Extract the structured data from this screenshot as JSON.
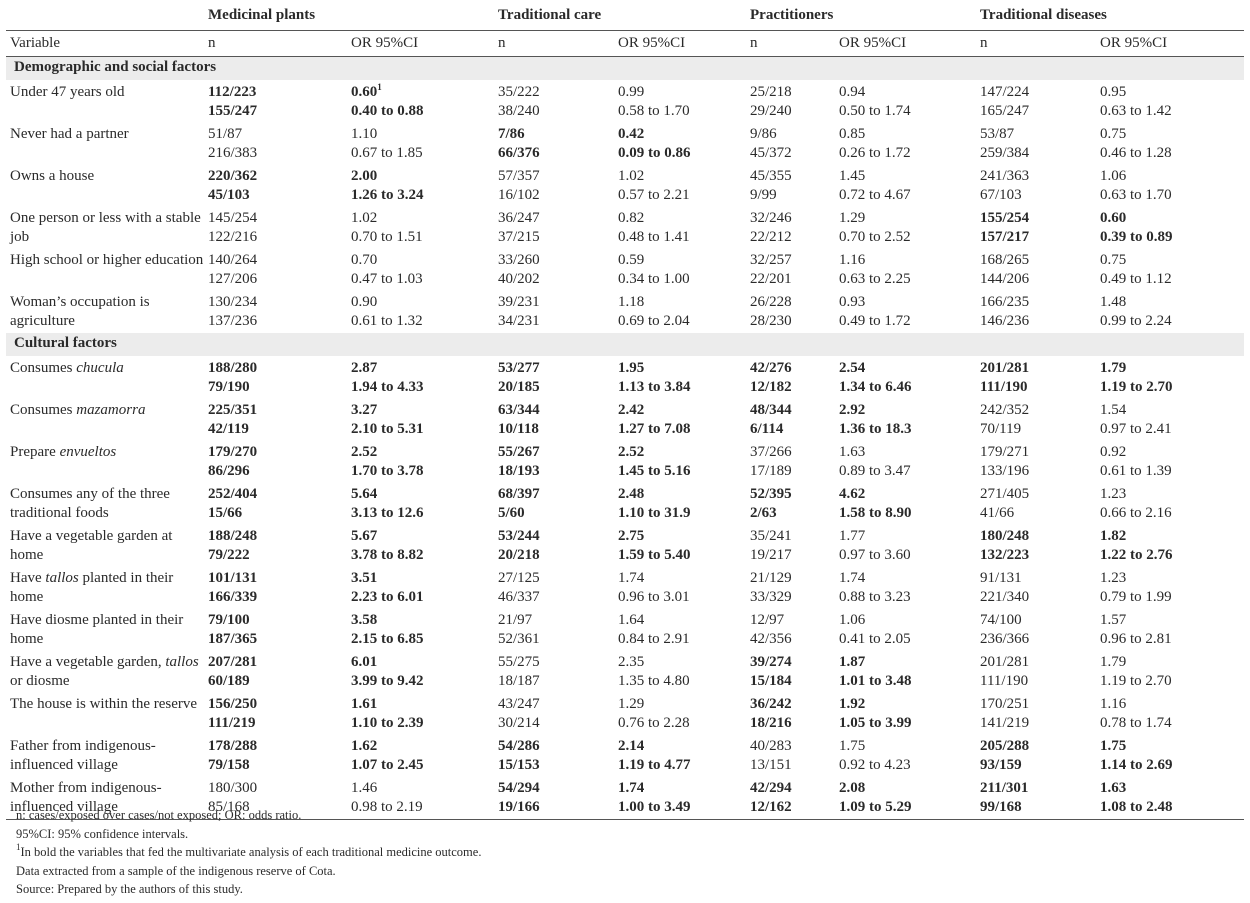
{
  "groups": [
    "Medicinal plants",
    "Traditional care",
    "Practitioners",
    "Traditional diseases"
  ],
  "col_headers": [
    "Variable",
    "n",
    "OR 95%CI",
    "n",
    "OR 95%CI",
    "n",
    "OR 95%CI",
    "n",
    "OR 95%CI"
  ],
  "sections": [
    {
      "title": "Demographic and social factors",
      "rows": [
        {
          "label": "Under 47 years old",
          "cells": [
            {
              "n": [
                "112/223",
                "155/247"
              ],
              "or": [
                "0.60",
                "0.40 to 0.88"
              ],
              "bold": true,
              "sup": "1"
            },
            {
              "n": [
                "35/222",
                "38/240"
              ],
              "or": [
                "0.99",
                "0.58 to 1.70"
              ],
              "bold": false
            },
            {
              "n": [
                "25/218",
                "29/240"
              ],
              "or": [
                "0.94",
                "0.50 to 1.74"
              ],
              "bold": false
            },
            {
              "n": [
                "147/224",
                "165/247"
              ],
              "or": [
                "0.95",
                "0.63 to 1.42"
              ],
              "bold": false
            }
          ]
        },
        {
          "label": "Never had a partner",
          "cells": [
            {
              "n": [
                "51/87",
                "216/383"
              ],
              "or": [
                "1.10",
                "0.67 to 1.85"
              ],
              "bold": false
            },
            {
              "n": [
                "7/86",
                "66/376"
              ],
              "or": [
                "0.42",
                "0.09 to 0.86"
              ],
              "bold": true
            },
            {
              "n": [
                "9/86",
                "45/372"
              ],
              "or": [
                "0.85",
                "0.26 to 1.72"
              ],
              "bold": false
            },
            {
              "n": [
                "53/87",
                "259/384"
              ],
              "or": [
                "0.75",
                "0.46 to 1.28"
              ],
              "bold": false
            }
          ]
        },
        {
          "label": "Owns a house",
          "cells": [
            {
              "n": [
                "220/362",
                "45/103"
              ],
              "or": [
                "2.00",
                "1.26 to 3.24"
              ],
              "bold": true
            },
            {
              "n": [
                "57/357",
                "16/102"
              ],
              "or": [
                "1.02",
                "0.57 to 2.21"
              ],
              "bold": false
            },
            {
              "n": [
                "45/355",
                "9/99"
              ],
              "or": [
                "1.45",
                "0.72 to 4.67"
              ],
              "bold": false
            },
            {
              "n": [
                "241/363",
                "67/103"
              ],
              "or": [
                "1.06",
                "0.63 to 1.70"
              ],
              "bold": false
            }
          ]
        },
        {
          "label": "One person or less with a stable job",
          "cells": [
            {
              "n": [
                "145/254",
                "122/216"
              ],
              "or": [
                "1.02",
                "0.70 to 1.51"
              ],
              "bold": false
            },
            {
              "n": [
                "36/247",
                "37/215"
              ],
              "or": [
                "0.82",
                "0.48 to 1.41"
              ],
              "bold": false
            },
            {
              "n": [
                "32/246",
                "22/212"
              ],
              "or": [
                "1.29",
                "0.70 to 2.52"
              ],
              "bold": false
            },
            {
              "n": [
                "155/254",
                "157/217"
              ],
              "or": [
                "0.60",
                "0.39 to 0.89"
              ],
              "bold": true
            }
          ]
        },
        {
          "label": "High school or higher education",
          "cells": [
            {
              "n": [
                "140/264",
                "127/206"
              ],
              "or": [
                "0.70",
                "0.47 to 1.03"
              ],
              "bold": false
            },
            {
              "n": [
                "33/260",
                "40/202"
              ],
              "or": [
                "0.59",
                "0.34 to 1.00"
              ],
              "bold": false
            },
            {
              "n": [
                "32/257",
                "22/201"
              ],
              "or": [
                "1.16",
                "0.63 to 2.25"
              ],
              "bold": false
            },
            {
              "n": [
                "168/265",
                "144/206"
              ],
              "or": [
                "0.75",
                "0.49 to 1.12"
              ],
              "bold": false
            }
          ]
        },
        {
          "label": "Woman’s occupation is agriculture",
          "cells": [
            {
              "n": [
                "130/234",
                "137/236"
              ],
              "or": [
                "0.90",
                "0.61 to 1.32"
              ],
              "bold": false
            },
            {
              "n": [
                "39/231",
                "34/231"
              ],
              "or": [
                "1.18",
                "0.69 to 2.04"
              ],
              "bold": false
            },
            {
              "n": [
                "26/228",
                "28/230"
              ],
              "or": [
                "0.93",
                "0.49 to 1.72"
              ],
              "bold": false
            },
            {
              "n": [
                "166/235",
                "146/236"
              ],
              "or": [
                "1.48",
                "0.99 to 2.24"
              ],
              "bold": false
            }
          ]
        }
      ]
    },
    {
      "title": "Cultural factors",
      "rows": [
        {
          "label": "Consumes chucula",
          "cells": [
            {
              "n": [
                "188/280",
                "79/190"
              ],
              "or": [
                "2.87",
                "1.94 to 4.33"
              ],
              "bold": true
            },
            {
              "n": [
                "53/277",
                "20/185"
              ],
              "or": [
                "1.95",
                "1.13 to 3.84"
              ],
              "bold": true
            },
            {
              "n": [
                "42/276",
                "12/182"
              ],
              "or": [
                "2.54",
                "1.34 to 6.46"
              ],
              "bold": true
            },
            {
              "n": [
                "201/281",
                "111/190"
              ],
              "or": [
                "1.79",
                "1.19 to 2.70"
              ],
              "bold": true
            }
          ]
        },
        {
          "label": "Consumes mazamorra",
          "cells": [
            {
              "n": [
                "225/351",
                "42/119"
              ],
              "or": [
                "3.27",
                "2.10 to 5.31"
              ],
              "bold": true
            },
            {
              "n": [
                "63/344",
                "10/118"
              ],
              "or": [
                "2.42",
                "1.27 to 7.08"
              ],
              "bold": true
            },
            {
              "n": [
                "48/344",
                "6/114"
              ],
              "or": [
                "2.92",
                "1.36 to 18.3"
              ],
              "bold": true
            },
            {
              "n": [
                "242/352",
                "70/119"
              ],
              "or": [
                "1.54",
                "0.97 to 2.41"
              ],
              "bold": false
            }
          ]
        },
        {
          "label": "Prepare envueltos",
          "cells": [
            {
              "n": [
                "179/270",
                "86/296"
              ],
              "or": [
                "2.52",
                "1.70 to 3.78"
              ],
              "bold": true
            },
            {
              "n": [
                "55/267",
                "18/193"
              ],
              "or": [
                "2.52",
                "1.45 to 5.16"
              ],
              "bold": true
            },
            {
              "n": [
                "37/266",
                "17/189"
              ],
              "or": [
                "1.63",
                "0.89 to 3.47"
              ],
              "bold": false
            },
            {
              "n": [
                "179/271",
                "133/196"
              ],
              "or": [
                "0.92",
                "0.61 to 1.39"
              ],
              "bold": false
            }
          ]
        },
        {
          "label": "Consumes any of the three traditional foods",
          "cells": [
            {
              "n": [
                "252/404",
                "15/66"
              ],
              "or": [
                "5.64",
                "3.13 to 12.6"
              ],
              "bold": true
            },
            {
              "n": [
                "68/397",
                "5/60"
              ],
              "or": [
                "2.48",
                "1.10 to 31.9"
              ],
              "bold": true
            },
            {
              "n": [
                "52/395",
                "2/63"
              ],
              "or": [
                "4.62",
                "1.58 to 8.90"
              ],
              "bold": true
            },
            {
              "n": [
                "271/405",
                "41/66"
              ],
              "or": [
                "1.23",
                "0.66 to 2.16"
              ],
              "bold": false
            }
          ]
        },
        {
          "label": "Have a vegetable garden at home",
          "cells": [
            {
              "n": [
                "188/248",
                "79/222"
              ],
              "or": [
                "5.67",
                "3.78 to 8.82"
              ],
              "bold": true
            },
            {
              "n": [
                "53/244",
                "20/218"
              ],
              "or": [
                "2.75",
                "1.59 to 5.40"
              ],
              "bold": true
            },
            {
              "n": [
                "35/241",
                "19/217"
              ],
              "or": [
                "1.77",
                "0.97 to 3.60"
              ],
              "bold": false
            },
            {
              "n": [
                "180/248",
                "132/223"
              ],
              "or": [
                "1.82",
                "1.22 to 2.76"
              ],
              "bold": true
            }
          ]
        },
        {
          "label": "Have tallos planted in their home",
          "cells": [
            {
              "n": [
                "101/131",
                "166/339"
              ],
              "or": [
                "3.51",
                "2.23 to 6.01"
              ],
              "bold": true
            },
            {
              "n": [
                "27/125",
                "46/337"
              ],
              "or": [
                "1.74",
                "0.96 to 3.01"
              ],
              "bold": false
            },
            {
              "n": [
                "21/129",
                "33/329"
              ],
              "or": [
                "1.74",
                "0.88 to 3.23"
              ],
              "bold": false
            },
            {
              "n": [
                "91/131",
                "221/340"
              ],
              "or": [
                "1.23",
                "0.79 to 1.99"
              ],
              "bold": false
            }
          ]
        },
        {
          "label": "Have diosme planted in their home",
          "cells": [
            {
              "n": [
                "79/100",
                "187/365"
              ],
              "or": [
                "3.58",
                "2.15 to 6.85"
              ],
              "bold": true
            },
            {
              "n": [
                "21/97",
                "52/361"
              ],
              "or": [
                "1.64",
                "0.84 to 2.91"
              ],
              "bold": false
            },
            {
              "n": [
                "12/97",
                "42/356"
              ],
              "or": [
                "1.06",
                "0.41 to 2.05"
              ],
              "bold": false
            },
            {
              "n": [
                "74/100",
                "236/366"
              ],
              "or": [
                "1.57",
                "0.96 to 2.81"
              ],
              "bold": false
            }
          ]
        },
        {
          "label": "Have a vegetable garden, tallos or diosme",
          "cells": [
            {
              "n": [
                "207/281",
                "60/189"
              ],
              "or": [
                "6.01",
                "3.99 to 9.42"
              ],
              "bold": true
            },
            {
              "n": [
                "55/275",
                "18/187"
              ],
              "or": [
                "2.35",
                "1.35 to 4.80"
              ],
              "bold": false
            },
            {
              "n": [
                "39/274",
                "15/184"
              ],
              "or": [
                "1.87",
                "1.01 to 3.48"
              ],
              "bold": true
            },
            {
              "n": [
                "201/281",
                "111/190"
              ],
              "or": [
                "1.79",
                "1.19 to 2.70"
              ],
              "bold": false
            }
          ]
        },
        {
          "label": "The house is within the reserve",
          "cells": [
            {
              "n": [
                "156/250",
                "111/219"
              ],
              "or": [
                "1.61",
                "1.10 to 2.39"
              ],
              "bold": true
            },
            {
              "n": [
                "43/247",
                "30/214"
              ],
              "or": [
                "1.29",
                "0.76 to 2.28"
              ],
              "bold": false
            },
            {
              "n": [
                "36/242",
                "18/216"
              ],
              "or": [
                "1.92",
                "1.05 to 3.99"
              ],
              "bold": true
            },
            {
              "n": [
                "170/251",
                "141/219"
              ],
              "or": [
                "1.16",
                "0.78 to 1.74"
              ],
              "bold": false
            }
          ]
        },
        {
          "label": "Father from indigenous-influenced village",
          "cells": [
            {
              "n": [
                "178/288",
                "79/158"
              ],
              "or": [
                "1.62",
                "1.07 to 2.45"
              ],
              "bold": true
            },
            {
              "n": [
                "54/286",
                "15/153"
              ],
              "or": [
                "2.14",
                "1.19 to 4.77"
              ],
              "bold": true
            },
            {
              "n": [
                "40/283",
                "13/151"
              ],
              "or": [
                "1.75",
                "0.92 to 4.23"
              ],
              "bold": false
            },
            {
              "n": [
                "205/288",
                "93/159"
              ],
              "or": [
                "1.75",
                "1.14 to 2.69"
              ],
              "bold": true
            }
          ]
        },
        {
          "label": "Mother from indigenous-influenced village",
          "cells": [
            {
              "n": [
                "180/300",
                "85/168"
              ],
              "or": [
                "1.46",
                "0.98 to 2.19"
              ],
              "bold": false
            },
            {
              "n": [
                "54/294",
                "19/166"
              ],
              "or": [
                "1.74",
                "1.00 to 3.49"
              ],
              "bold": true
            },
            {
              "n": [
                "42/294",
                "12/162"
              ],
              "or": [
                "2.08",
                "1.09 to 5.29"
              ],
              "bold": true
            },
            {
              "n": [
                "211/301",
                "99/168"
              ],
              "or": [
                "1.63",
                "1.08 to 2.48"
              ],
              "bold": true
            }
          ]
        }
      ]
    }
  ],
  "italic_words": [
    "chucula",
    "mazamorra",
    "envueltos",
    "tallos"
  ],
  "notes": [
    "n: cases/exposed over cases/not exposed; OR: odds ratio.",
    "95%CI: 95% confidence intervals.",
    "In bold the variables that fed the multivariate analysis of each traditional medicine outcome.",
    "Data extracted from a sample of the indigenous reserve of Cota.",
    "Source: Prepared by the authors of this study."
  ],
  "note_sup": "1"
}
